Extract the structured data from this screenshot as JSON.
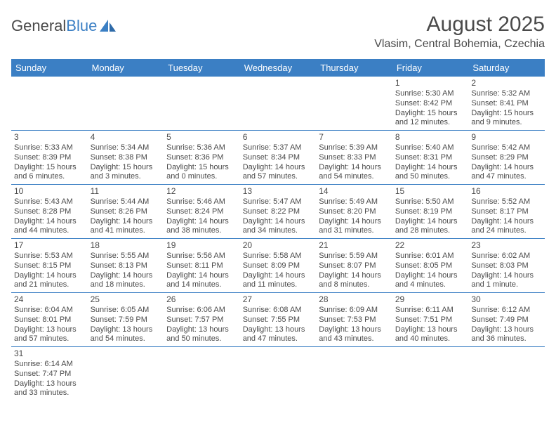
{
  "logo": {
    "text1": "General",
    "text2": "Blue"
  },
  "header": {
    "title": "August 2025",
    "subtitle": "Vlasim, Central Bohemia, Czechia"
  },
  "colors": {
    "accent": "#3b7fc4",
    "text": "#4a4a4a",
    "bg": "#ffffff"
  },
  "weekdays": [
    "Sunday",
    "Monday",
    "Tuesday",
    "Wednesday",
    "Thursday",
    "Friday",
    "Saturday"
  ],
  "days": [
    {
      "n": "1",
      "sr": "Sunrise: 5:30 AM",
      "ss": "Sunset: 8:42 PM",
      "dl": "Daylight: 15 hours and 12 minutes."
    },
    {
      "n": "2",
      "sr": "Sunrise: 5:32 AM",
      "ss": "Sunset: 8:41 PM",
      "dl": "Daylight: 15 hours and 9 minutes."
    },
    {
      "n": "3",
      "sr": "Sunrise: 5:33 AM",
      "ss": "Sunset: 8:39 PM",
      "dl": "Daylight: 15 hours and 6 minutes."
    },
    {
      "n": "4",
      "sr": "Sunrise: 5:34 AM",
      "ss": "Sunset: 8:38 PM",
      "dl": "Daylight: 15 hours and 3 minutes."
    },
    {
      "n": "5",
      "sr": "Sunrise: 5:36 AM",
      "ss": "Sunset: 8:36 PM",
      "dl": "Daylight: 15 hours and 0 minutes."
    },
    {
      "n": "6",
      "sr": "Sunrise: 5:37 AM",
      "ss": "Sunset: 8:34 PM",
      "dl": "Daylight: 14 hours and 57 minutes."
    },
    {
      "n": "7",
      "sr": "Sunrise: 5:39 AM",
      "ss": "Sunset: 8:33 PM",
      "dl": "Daylight: 14 hours and 54 minutes."
    },
    {
      "n": "8",
      "sr": "Sunrise: 5:40 AM",
      "ss": "Sunset: 8:31 PM",
      "dl": "Daylight: 14 hours and 50 minutes."
    },
    {
      "n": "9",
      "sr": "Sunrise: 5:42 AM",
      "ss": "Sunset: 8:29 PM",
      "dl": "Daylight: 14 hours and 47 minutes."
    },
    {
      "n": "10",
      "sr": "Sunrise: 5:43 AM",
      "ss": "Sunset: 8:28 PM",
      "dl": "Daylight: 14 hours and 44 minutes."
    },
    {
      "n": "11",
      "sr": "Sunrise: 5:44 AM",
      "ss": "Sunset: 8:26 PM",
      "dl": "Daylight: 14 hours and 41 minutes."
    },
    {
      "n": "12",
      "sr": "Sunrise: 5:46 AM",
      "ss": "Sunset: 8:24 PM",
      "dl": "Daylight: 14 hours and 38 minutes."
    },
    {
      "n": "13",
      "sr": "Sunrise: 5:47 AM",
      "ss": "Sunset: 8:22 PM",
      "dl": "Daylight: 14 hours and 34 minutes."
    },
    {
      "n": "14",
      "sr": "Sunrise: 5:49 AM",
      "ss": "Sunset: 8:20 PM",
      "dl": "Daylight: 14 hours and 31 minutes."
    },
    {
      "n": "15",
      "sr": "Sunrise: 5:50 AM",
      "ss": "Sunset: 8:19 PM",
      "dl": "Daylight: 14 hours and 28 minutes."
    },
    {
      "n": "16",
      "sr": "Sunrise: 5:52 AM",
      "ss": "Sunset: 8:17 PM",
      "dl": "Daylight: 14 hours and 24 minutes."
    },
    {
      "n": "17",
      "sr": "Sunrise: 5:53 AM",
      "ss": "Sunset: 8:15 PM",
      "dl": "Daylight: 14 hours and 21 minutes."
    },
    {
      "n": "18",
      "sr": "Sunrise: 5:55 AM",
      "ss": "Sunset: 8:13 PM",
      "dl": "Daylight: 14 hours and 18 minutes."
    },
    {
      "n": "19",
      "sr": "Sunrise: 5:56 AM",
      "ss": "Sunset: 8:11 PM",
      "dl": "Daylight: 14 hours and 14 minutes."
    },
    {
      "n": "20",
      "sr": "Sunrise: 5:58 AM",
      "ss": "Sunset: 8:09 PM",
      "dl": "Daylight: 14 hours and 11 minutes."
    },
    {
      "n": "21",
      "sr": "Sunrise: 5:59 AM",
      "ss": "Sunset: 8:07 PM",
      "dl": "Daylight: 14 hours and 8 minutes."
    },
    {
      "n": "22",
      "sr": "Sunrise: 6:01 AM",
      "ss": "Sunset: 8:05 PM",
      "dl": "Daylight: 14 hours and 4 minutes."
    },
    {
      "n": "23",
      "sr": "Sunrise: 6:02 AM",
      "ss": "Sunset: 8:03 PM",
      "dl": "Daylight: 14 hours and 1 minute."
    },
    {
      "n": "24",
      "sr": "Sunrise: 6:04 AM",
      "ss": "Sunset: 8:01 PM",
      "dl": "Daylight: 13 hours and 57 minutes."
    },
    {
      "n": "25",
      "sr": "Sunrise: 6:05 AM",
      "ss": "Sunset: 7:59 PM",
      "dl": "Daylight: 13 hours and 54 minutes."
    },
    {
      "n": "26",
      "sr": "Sunrise: 6:06 AM",
      "ss": "Sunset: 7:57 PM",
      "dl": "Daylight: 13 hours and 50 minutes."
    },
    {
      "n": "27",
      "sr": "Sunrise: 6:08 AM",
      "ss": "Sunset: 7:55 PM",
      "dl": "Daylight: 13 hours and 47 minutes."
    },
    {
      "n": "28",
      "sr": "Sunrise: 6:09 AM",
      "ss": "Sunset: 7:53 PM",
      "dl": "Daylight: 13 hours and 43 minutes."
    },
    {
      "n": "29",
      "sr": "Sunrise: 6:11 AM",
      "ss": "Sunset: 7:51 PM",
      "dl": "Daylight: 13 hours and 40 minutes."
    },
    {
      "n": "30",
      "sr": "Sunrise: 6:12 AM",
      "ss": "Sunset: 7:49 PM",
      "dl": "Daylight: 13 hours and 36 minutes."
    },
    {
      "n": "31",
      "sr": "Sunrise: 6:14 AM",
      "ss": "Sunset: 7:47 PM",
      "dl": "Daylight: 13 hours and 33 minutes."
    }
  ],
  "first_weekday_index": 5,
  "days_in_month": 31
}
